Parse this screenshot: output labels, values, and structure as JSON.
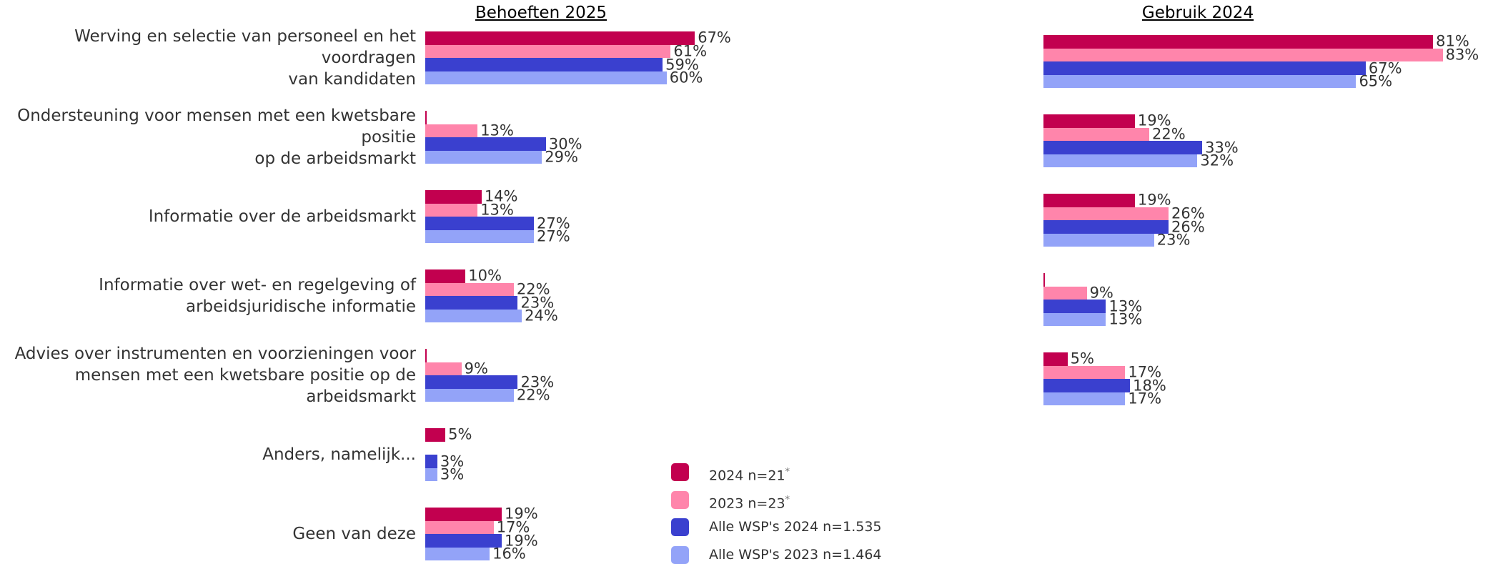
{
  "chart_data": [
    {
      "type": "bar",
      "orientation": "horizontal",
      "title": "Behoeften 2025",
      "categories": [
        "Werving en selectie van personeel en het voordragen\nvan kandidaten",
        "Ondersteuning voor mensen met een kwetsbare positie\nop de arbeidsmarkt",
        "Informatie over de arbeidsmarkt",
        "Informatie over wet- en regelgeving of\narbeidsjuridische informatie",
        "Advies over instrumenten en voorzieningen voor\nmensen met een kwetsbare positie op de arbeidsmarkt",
        "Anders, namelijk...",
        "Geen van deze"
      ],
      "xlim": [
        0,
        100
      ],
      "series": [
        {
          "name": "2024 n=21",
          "footnote_mark": "*",
          "color": "#c2004f",
          "values": [
            67,
            0,
            14,
            10,
            0,
            5,
            19
          ],
          "value_labels": [
            "67%",
            null,
            "14%",
            "10%",
            null,
            "5%",
            "19%"
          ]
        },
        {
          "name": "2023 n=23",
          "footnote_mark": "*",
          "color": "#ff85ab",
          "values": [
            61,
            13,
            13,
            22,
            9,
            null,
            17
          ],
          "value_labels": [
            "61%",
            "13%",
            "13%",
            "22%",
            "9%",
            null,
            "17%"
          ]
        },
        {
          "name": "Alle WSP's 2024 n=1.535",
          "color": "#3a40cf",
          "values": [
            59,
            30,
            27,
            23,
            23,
            3,
            19
          ],
          "value_labels": [
            "59%",
            "30%",
            "27%",
            "23%",
            "23%",
            "3%",
            "19%"
          ]
        },
        {
          "name": "Alle WSP's 2023 n=1.464",
          "color": "#93a3f8",
          "values": [
            60,
            29,
            27,
            24,
            22,
            3,
            16
          ],
          "value_labels": [
            "60%",
            "29%",
            "27%",
            "24%",
            "22%",
            "3%",
            "16%"
          ]
        }
      ]
    },
    {
      "type": "bar",
      "orientation": "horizontal",
      "title": "Gebruik 2024",
      "xlim": [
        0,
        100
      ],
      "series": [
        {
          "values": [
            81,
            19,
            19,
            0,
            5
          ],
          "value_labels": [
            "81%",
            "19%",
            "19%",
            null,
            "5%"
          ]
        },
        {
          "values": [
            83,
            22,
            26,
            9,
            17
          ],
          "value_labels": [
            "83%",
            "22%",
            "26%",
            "9%",
            "17%"
          ]
        },
        {
          "values": [
            67,
            33,
            26,
            13,
            18
          ],
          "value_labels": [
            "67%",
            "33%",
            "26%",
            "13%",
            "18%"
          ]
        },
        {
          "values": [
            65,
            32,
            23,
            13,
            17
          ],
          "value_labels": [
            "65%",
            "32%",
            "23%",
            "13%",
            "17%"
          ]
        }
      ]
    }
  ]
}
